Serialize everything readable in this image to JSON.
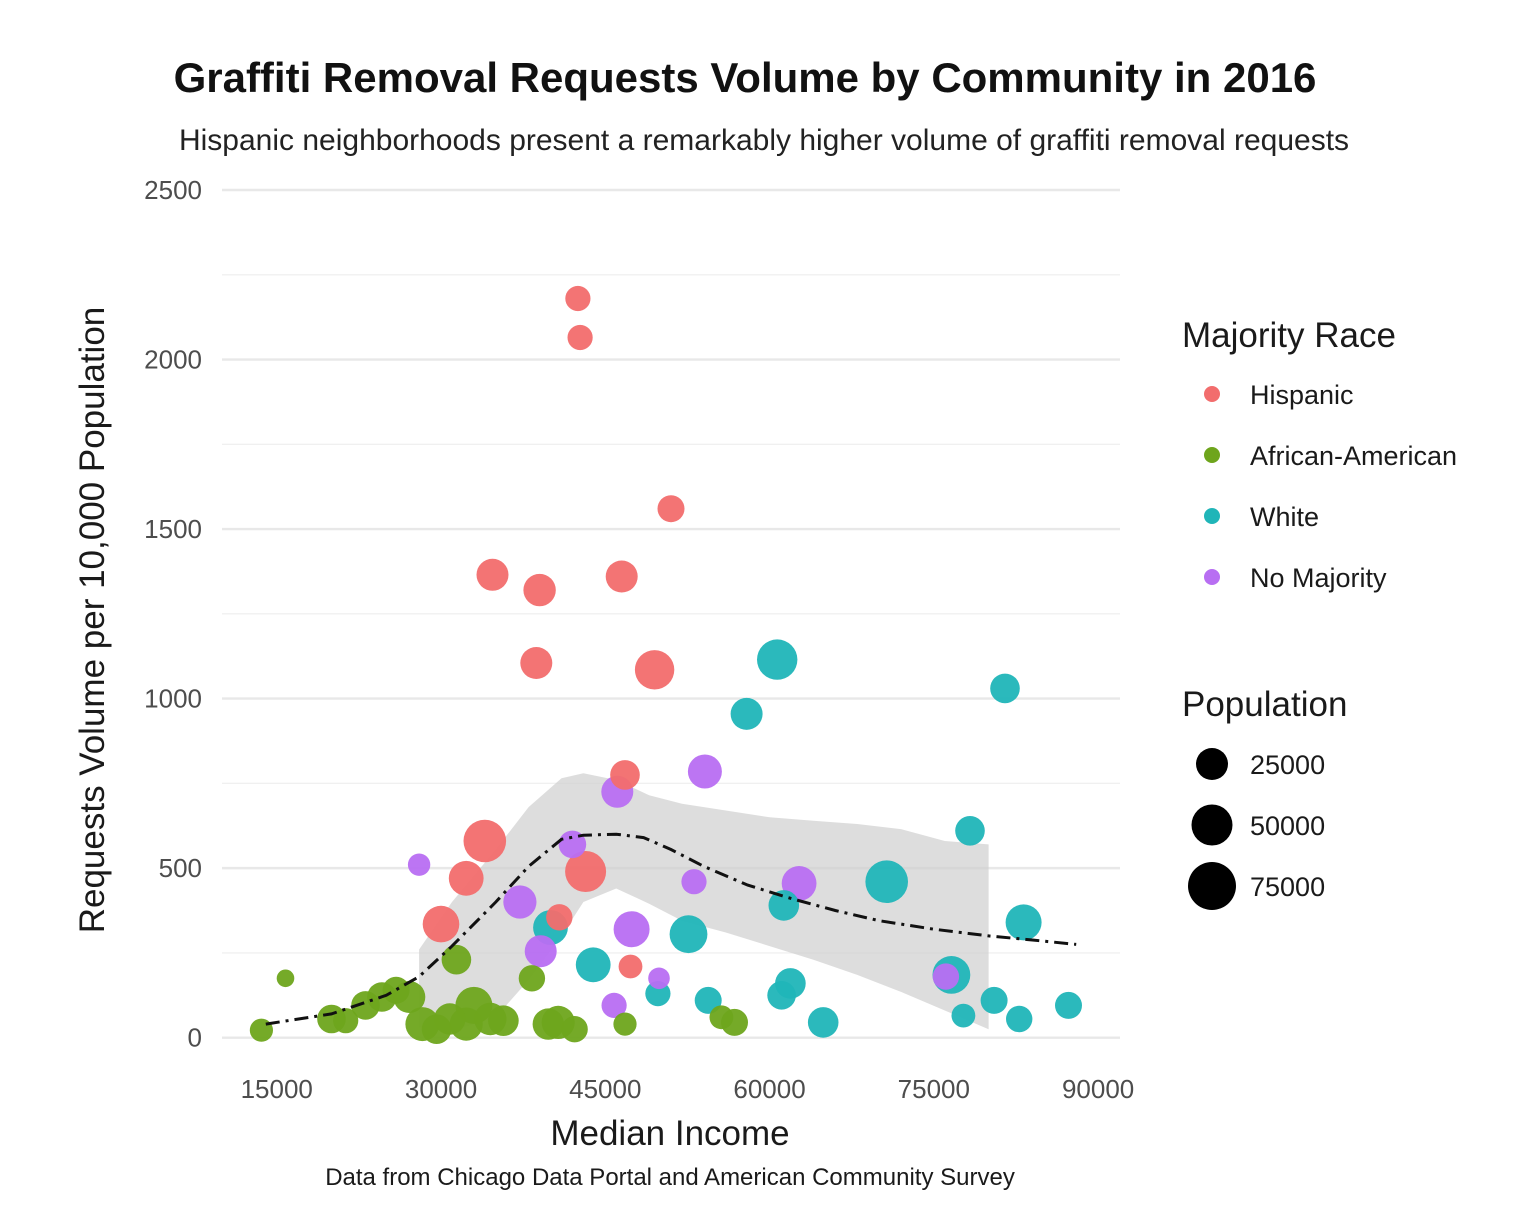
{
  "chart_data": {
    "type": "scatter",
    "title": "Graffiti Removal Requests Volume by Community in 2016",
    "subtitle": "Hispanic neighborhoods present a remarkably higher volume of graffiti removal requests",
    "xlabel": "Median Income",
    "ylabel": "Requests Volume per 10,000 Population",
    "caption": "Data from Chicago Data Portal and American Community Survey",
    "xlim": [
      10000,
      92000
    ],
    "ylim": [
      -60,
      2500
    ],
    "x_ticks": [
      15000,
      30000,
      45000,
      60000,
      75000,
      90000
    ],
    "x_tick_labels": [
      "15000",
      "30000",
      "45000",
      "60000",
      "75000",
      "90000"
    ],
    "y_ticks": [
      0,
      500,
      1000,
      1500,
      2000,
      2500
    ],
    "y_tick_labels": [
      "0",
      "500",
      "1000",
      "1500",
      "2000",
      "2500"
    ],
    "grid": true,
    "legend_placement": "right",
    "color_legend": {
      "title": "Majority Race",
      "entries": [
        {
          "label": "Hispanic",
          "color": "#f26d6d"
        },
        {
          "label": "African-American",
          "color": "#6ea51c"
        },
        {
          "label": "White",
          "color": "#20b5b8"
        },
        {
          "label": "No Majority",
          "color": "#b86ef2"
        }
      ]
    },
    "size_legend": {
      "title": "Population",
      "entries": [
        {
          "label": "25000",
          "value": 25000
        },
        {
          "label": "50000",
          "value": 50000
        },
        {
          "label": "75000",
          "value": 75000
        }
      ]
    },
    "series": [
      {
        "name": "Hispanic",
        "color": "#f26d6d",
        "points": [
          {
            "x": 42500,
            "y": 2180,
            "pop": 12000
          },
          {
            "x": 42700,
            "y": 2065,
            "pop": 12000
          },
          {
            "x": 51000,
            "y": 1560,
            "pop": 15000
          },
          {
            "x": 34700,
            "y": 1365,
            "pop": 25000
          },
          {
            "x": 39000,
            "y": 1320,
            "pop": 26000
          },
          {
            "x": 46500,
            "y": 1360,
            "pop": 25000
          },
          {
            "x": 38700,
            "y": 1105,
            "pop": 25000
          },
          {
            "x": 49500,
            "y": 1085,
            "pop": 45000
          },
          {
            "x": 46800,
            "y": 775,
            "pop": 20000
          },
          {
            "x": 34000,
            "y": 580,
            "pop": 55000
          },
          {
            "x": 32300,
            "y": 470,
            "pop": 32000
          },
          {
            "x": 43200,
            "y": 490,
            "pop": 50000
          },
          {
            "x": 30000,
            "y": 335,
            "pop": 37000
          },
          {
            "x": 40800,
            "y": 355,
            "pop": 14000
          },
          {
            "x": 47300,
            "y": 210,
            "pop": 10000
          }
        ]
      },
      {
        "name": "African-American",
        "color": "#6ea51c",
        "points": [
          {
            "x": 13600,
            "y": 22,
            "pop": 9000
          },
          {
            "x": 15800,
            "y": 175,
            "pop": 3000
          },
          {
            "x": 20000,
            "y": 55,
            "pop": 18000
          },
          {
            "x": 21300,
            "y": 50,
            "pop": 12000
          },
          {
            "x": 23100,
            "y": 95,
            "pop": 18000
          },
          {
            "x": 24600,
            "y": 120,
            "pop": 20000
          },
          {
            "x": 25900,
            "y": 140,
            "pop": 15000
          },
          {
            "x": 27100,
            "y": 120,
            "pop": 25000
          },
          {
            "x": 28300,
            "y": 40,
            "pop": 30000
          },
          {
            "x": 29600,
            "y": 25,
            "pop": 20000
          },
          {
            "x": 30800,
            "y": 55,
            "pop": 24000
          },
          {
            "x": 31400,
            "y": 230,
            "pop": 20000
          },
          {
            "x": 32300,
            "y": 40,
            "pop": 28000
          },
          {
            "x": 33000,
            "y": 95,
            "pop": 38000
          },
          {
            "x": 34500,
            "y": 55,
            "pop": 26000
          },
          {
            "x": 35700,
            "y": 50,
            "pop": 22000
          },
          {
            "x": 38300,
            "y": 175,
            "pop": 14000
          },
          {
            "x": 39800,
            "y": 40,
            "pop": 24000
          },
          {
            "x": 40700,
            "y": 45,
            "pop": 28000
          },
          {
            "x": 42200,
            "y": 25,
            "pop": 14000
          },
          {
            "x": 46800,
            "y": 40,
            "pop": 9000
          },
          {
            "x": 55600,
            "y": 60,
            "pop": 10000
          },
          {
            "x": 56800,
            "y": 45,
            "pop": 15000
          }
        ]
      },
      {
        "name": "White",
        "color": "#20b5b8",
        "points": [
          {
            "x": 60700,
            "y": 1115,
            "pop": 48000
          },
          {
            "x": 57900,
            "y": 955,
            "pop": 25000
          },
          {
            "x": 81500,
            "y": 1030,
            "pop": 20000
          },
          {
            "x": 78300,
            "y": 610,
            "pop": 20000
          },
          {
            "x": 70700,
            "y": 460,
            "pop": 55000
          },
          {
            "x": 61300,
            "y": 390,
            "pop": 22000
          },
          {
            "x": 83200,
            "y": 340,
            "pop": 35000
          },
          {
            "x": 52600,
            "y": 305,
            "pop": 40000
          },
          {
            "x": 40000,
            "y": 325,
            "pop": 32000
          },
          {
            "x": 43900,
            "y": 215,
            "pop": 32000
          },
          {
            "x": 49800,
            "y": 130,
            "pop": 12000
          },
          {
            "x": 54400,
            "y": 110,
            "pop": 15000
          },
          {
            "x": 61900,
            "y": 160,
            "pop": 22000
          },
          {
            "x": 61100,
            "y": 125,
            "pop": 18000
          },
          {
            "x": 64900,
            "y": 45,
            "pop": 22000
          },
          {
            "x": 76600,
            "y": 185,
            "pop": 40000
          },
          {
            "x": 77700,
            "y": 65,
            "pop": 10000
          },
          {
            "x": 80500,
            "y": 110,
            "pop": 15000
          },
          {
            "x": 82800,
            "y": 55,
            "pop": 14000
          },
          {
            "x": 87300,
            "y": 95,
            "pop": 15000
          }
        ]
      },
      {
        "name": "No Majority",
        "color": "#b86ef2",
        "points": [
          {
            "x": 28000,
            "y": 510,
            "pop": 8000
          },
          {
            "x": 42000,
            "y": 570,
            "pop": 16000
          },
          {
            "x": 46100,
            "y": 725,
            "pop": 25000
          },
          {
            "x": 54100,
            "y": 785,
            "pop": 30000
          },
          {
            "x": 37200,
            "y": 400,
            "pop": 28000
          },
          {
            "x": 53100,
            "y": 460,
            "pop": 12000
          },
          {
            "x": 62700,
            "y": 455,
            "pop": 32000
          },
          {
            "x": 39100,
            "y": 255,
            "pop": 25000
          },
          {
            "x": 47400,
            "y": 320,
            "pop": 35000
          },
          {
            "x": 45800,
            "y": 95,
            "pop": 12000
          },
          {
            "x": 49900,
            "y": 175,
            "pop": 7000
          },
          {
            "x": 76100,
            "y": 180,
            "pop": 14000
          }
        ]
      }
    ],
    "smooth": {
      "line": [
        [
          14000,
          40
        ],
        [
          20000,
          70
        ],
        [
          25000,
          125
        ],
        [
          28000,
          180
        ],
        [
          31000,
          270
        ],
        [
          35000,
          400
        ],
        [
          38000,
          505
        ],
        [
          41000,
          585
        ],
        [
          43000,
          597
        ],
        [
          46000,
          600
        ],
        [
          48500,
          590
        ],
        [
          51000,
          555
        ],
        [
          54000,
          505
        ],
        [
          58000,
          450
        ],
        [
          62000,
          410
        ],
        [
          66000,
          375
        ],
        [
          70000,
          345
        ],
        [
          75000,
          320
        ],
        [
          80000,
          300
        ],
        [
          84000,
          288
        ],
        [
          88000,
          275
        ]
      ],
      "band_upper": [
        [
          28000,
          260
        ],
        [
          31000,
          400
        ],
        [
          35000,
          555
        ],
        [
          38000,
          680
        ],
        [
          41000,
          765
        ],
        [
          43000,
          780
        ],
        [
          46000,
          760
        ],
        [
          49000,
          715
        ],
        [
          52000,
          690
        ],
        [
          56000,
          670
        ],
        [
          60000,
          650
        ],
        [
          64000,
          640
        ],
        [
          68000,
          630
        ],
        [
          72000,
          615
        ],
        [
          76000,
          580
        ],
        [
          80000,
          570
        ]
      ],
      "band_lower": [
        [
          80000,
          25
        ],
        [
          76000,
          80
        ],
        [
          72000,
          135
        ],
        [
          68000,
          185
        ],
        [
          64000,
          230
        ],
        [
          60000,
          270
        ],
        [
          56000,
          310
        ],
        [
          52000,
          345
        ],
        [
          49000,
          395
        ],
        [
          46000,
          440
        ],
        [
          43000,
          400
        ],
        [
          41000,
          300
        ],
        [
          38000,
          170
        ],
        [
          35000,
          60
        ],
        [
          31000,
          20
        ],
        [
          28000,
          30
        ]
      ]
    }
  }
}
